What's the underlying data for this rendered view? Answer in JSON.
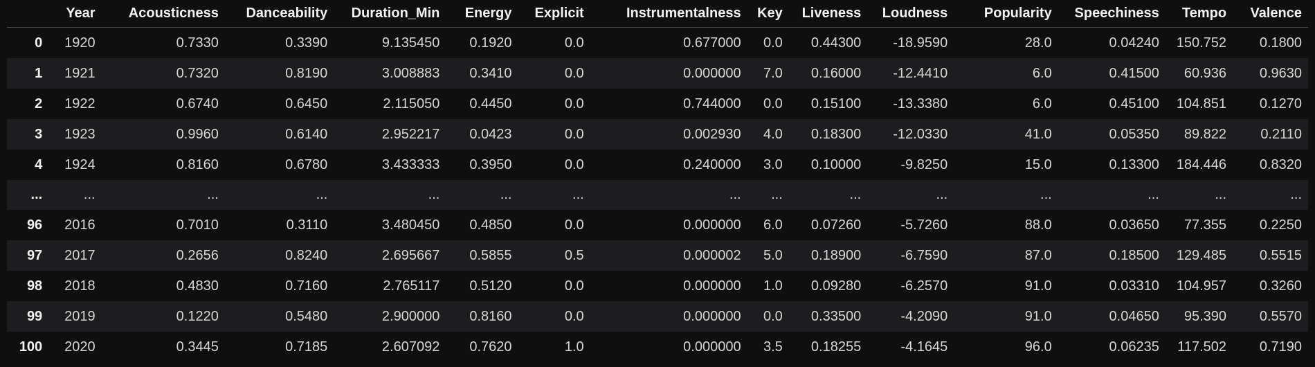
{
  "table": {
    "index_header": "",
    "columns": [
      "Year",
      "Acousticness",
      "Danceability",
      "Duration_Min",
      "Energy",
      "Explicit",
      "Instrumentalness",
      "Key",
      "Liveness",
      "Loudness",
      "Popularity",
      "Speechiness",
      "Tempo",
      "Valence"
    ],
    "rows": [
      {
        "index": "0",
        "cells": [
          "1920",
          "0.7330",
          "0.3390",
          "9.135450",
          "0.1920",
          "0.0",
          "0.677000",
          "0.0",
          "0.44300",
          "-18.9590",
          "28.0",
          "0.04240",
          "150.752",
          "0.1800"
        ]
      },
      {
        "index": "1",
        "cells": [
          "1921",
          "0.7320",
          "0.8190",
          "3.008883",
          "0.3410",
          "0.0",
          "0.000000",
          "7.0",
          "0.16000",
          "-12.4410",
          "6.0",
          "0.41500",
          "60.936",
          "0.9630"
        ]
      },
      {
        "index": "2",
        "cells": [
          "1922",
          "0.6740",
          "0.6450",
          "2.115050",
          "0.4450",
          "0.0",
          "0.744000",
          "0.0",
          "0.15100",
          "-13.3380",
          "6.0",
          "0.45100",
          "104.851",
          "0.1270"
        ]
      },
      {
        "index": "3",
        "cells": [
          "1923",
          "0.9960",
          "0.6140",
          "2.952217",
          "0.0423",
          "0.0",
          "0.002930",
          "4.0",
          "0.18300",
          "-12.0330",
          "41.0",
          "0.05350",
          "89.822",
          "0.2110"
        ]
      },
      {
        "index": "4",
        "cells": [
          "1924",
          "0.8160",
          "0.6780",
          "3.433333",
          "0.3950",
          "0.0",
          "0.240000",
          "3.0",
          "0.10000",
          "-9.8250",
          "15.0",
          "0.13300",
          "184.446",
          "0.8320"
        ]
      },
      {
        "index": "...",
        "cells": [
          "...",
          "...",
          "...",
          "...",
          "...",
          "...",
          "...",
          "...",
          "...",
          "...",
          "...",
          "...",
          "...",
          "..."
        ]
      },
      {
        "index": "96",
        "cells": [
          "2016",
          "0.7010",
          "0.3110",
          "3.480450",
          "0.4850",
          "0.0",
          "0.000000",
          "6.0",
          "0.07260",
          "-5.7260",
          "88.0",
          "0.03650",
          "77.355",
          "0.2250"
        ]
      },
      {
        "index": "97",
        "cells": [
          "2017",
          "0.2656",
          "0.8240",
          "2.695667",
          "0.5855",
          "0.5",
          "0.000002",
          "5.0",
          "0.18900",
          "-6.7590",
          "87.0",
          "0.18500",
          "129.485",
          "0.5515"
        ]
      },
      {
        "index": "98",
        "cells": [
          "2018",
          "0.4830",
          "0.7160",
          "2.765117",
          "0.5120",
          "0.0",
          "0.000000",
          "1.0",
          "0.09280",
          "-6.2570",
          "91.0",
          "0.03310",
          "104.957",
          "0.3260"
        ]
      },
      {
        "index": "99",
        "cells": [
          "2019",
          "0.1220",
          "0.5480",
          "2.900000",
          "0.8160",
          "0.0",
          "0.000000",
          "0.0",
          "0.33500",
          "-4.2090",
          "91.0",
          "0.04650",
          "95.390",
          "0.5570"
        ]
      },
      {
        "index": "100",
        "cells": [
          "2020",
          "0.3445",
          "0.7185",
          "2.607092",
          "0.7620",
          "1.0",
          "0.000000",
          "3.5",
          "0.18255",
          "-4.1645",
          "96.0",
          "0.06235",
          "117.502",
          "0.7190"
        ]
      }
    ]
  }
}
